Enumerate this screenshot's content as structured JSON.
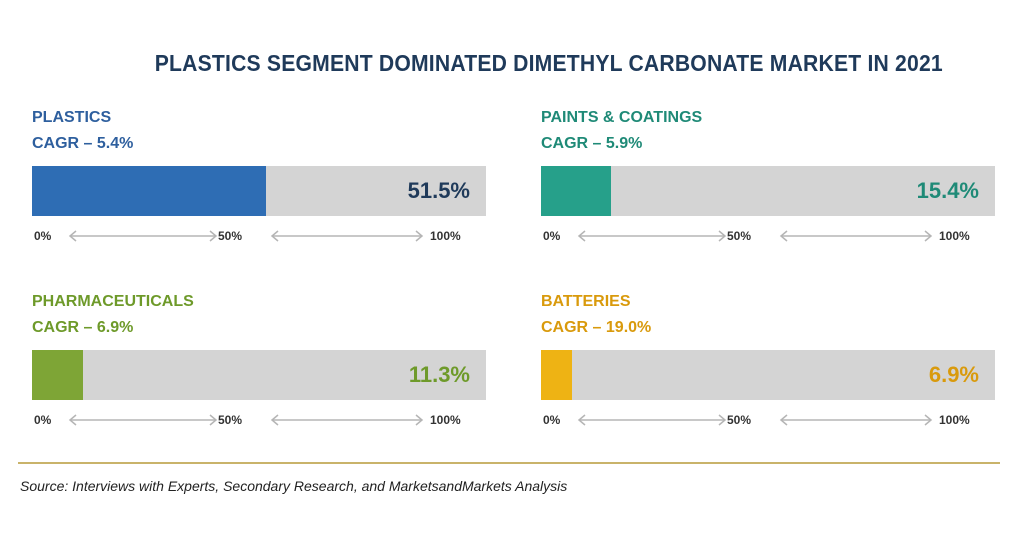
{
  "title": "PLASTICS SEGMENT DOMINATED DIMETHYL CARBONATE MARKET IN 2021",
  "source": "Source: Interviews with Experts, Secondary Research, and MarketsandMarkets Analysis",
  "chart_data": {
    "type": "bar",
    "title": "PLASTICS SEGMENT DOMINATED DIMETHYL CARBONATE MARKET IN 2021",
    "xlim": [
      0,
      100
    ],
    "tick_labels": [
      "0%",
      "50%",
      "100%"
    ],
    "grid": false,
    "categories": [
      "PLASTICS",
      "PAINTS & COATINGS",
      "PHARMACEUTICALS",
      "BATTERIES"
    ],
    "values": [
      51.5,
      15.4,
      11.3,
      6.9
    ],
    "segments": [
      {
        "name": "PLASTICS",
        "cagr": "CAGR – 5.4%",
        "value": 51.5,
        "value_label": "51.5%",
        "color": "#2e6db4",
        "text_color": "#2e5f9e"
      },
      {
        "name": "PAINTS & COATINGS",
        "cagr": "CAGR – 5.9%",
        "value": 15.4,
        "value_label": "15.4%",
        "color": "#26a08a",
        "text_color": "#1f8a77"
      },
      {
        "name": "PHARMACEUTICALS",
        "cagr": "CAGR – 6.9%",
        "value": 11.3,
        "value_label": "11.3%",
        "color": "#7ea536",
        "text_color": "#6e9a2a"
      },
      {
        "name": "BATTERIES",
        "cagr": "CAGR – 19.0%",
        "value": 6.9,
        "value_label": "6.9%",
        "color": "#eeb314",
        "text_color": "#d99a0c"
      }
    ]
  }
}
